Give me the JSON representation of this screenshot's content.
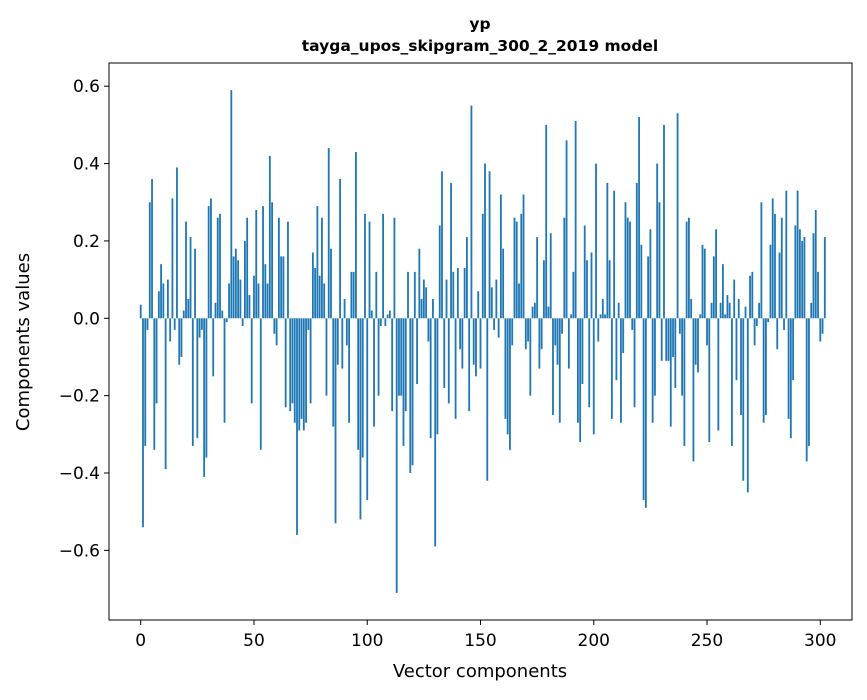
{
  "chart_data": {
    "type": "bar",
    "title": "yp",
    "subtitle": "tayga_upos_skipgram_300_2_2019 model",
    "xlabel": "Vector components",
    "ylabel": "Components values",
    "xlim": [
      -14,
      314
    ],
    "ylim": [
      -0.78,
      0.66
    ],
    "xticks": [
      0,
      50,
      100,
      150,
      200,
      250,
      300
    ],
    "yticks": [
      -0.6,
      -0.4,
      -0.2,
      0.0,
      0.2,
      0.4,
      0.6
    ],
    "ytick_labels": [
      "−0.6",
      "−0.4",
      "−0.2",
      "0.0",
      "0.2",
      "0.4",
      "0.6"
    ],
    "bar_color": "#1f77b4",
    "grid": false,
    "x": "0..299",
    "values": [
      0.035,
      -0.54,
      -0.33,
      -0.03,
      0.3,
      0.36,
      -0.34,
      -0.22,
      0.07,
      0.14,
      0.09,
      -0.39,
      0.1,
      -0.06,
      0.31,
      -0.03,
      0.39,
      -0.12,
      -0.1,
      0.02,
      0.25,
      0.05,
      0.21,
      -0.33,
      0.18,
      -0.31,
      -0.05,
      -0.03,
      -0.41,
      -0.36,
      0.29,
      0.31,
      -0.15,
      0.04,
      0.26,
      0.27,
      0.02,
      -0.27,
      -0.01,
      0.09,
      0.59,
      0.16,
      0.18,
      0.15,
      0.1,
      -0.02,
      0.2,
      0.26,
      0.06,
      -0.22,
      0.11,
      0.28,
      0.09,
      -0.34,
      0.29,
      0.14,
      0.09,
      0.42,
      0.3,
      -0.04,
      -0.07,
      0.26,
      0.16,
      0.16,
      -0.23,
      0.25,
      -0.24,
      -0.22,
      -0.27,
      -0.56,
      -0.29,
      -0.26,
      -0.29,
      -0.27,
      -0.03,
      -0.22,
      0.17,
      0.13,
      0.29,
      0.11,
      0.26,
      0.09,
      -0.2,
      0.44,
      0.18,
      -0.28,
      -0.53,
      -0.12,
      0.36,
      -0.13,
      0.05,
      -0.07,
      -0.27,
      0.12,
      0.12,
      0.43,
      -0.34,
      -0.52,
      -0.36,
      0.27,
      -0.47,
      0.25,
      0.02,
      -0.28,
      0.12,
      -0.2,
      -0.02,
      0.27,
      -0.02,
      0.01,
      0.02,
      -0.24,
      0.26,
      -0.71,
      -0.2,
      -0.2,
      -0.33,
      -0.24,
      0.12,
      -0.4,
      -0.38,
      0.12,
      -0.17,
      0.18,
      0.05,
      0.1,
      0.08,
      -0.06,
      -0.31,
      0.05,
      -0.59,
      -0.3,
      0.24,
      0.38,
      -0.18,
      0.1,
      -0.22,
      0.35,
      0.12,
      -0.26,
      0.13,
      -0.08,
      -0.13,
      0.13,
      0.21,
      -0.24,
      0.55,
      -0.12,
      -0.15,
      0.07,
      -0.13,
      0.27,
      0.4,
      -0.42,
      0.38,
      0.08,
      -0.03,
      0.1,
      -0.05,
      0.32,
      0.18,
      -0.26,
      -0.3,
      -0.34,
      -0.07,
      0.26,
      0.25,
      0.09,
      0.27,
      0.32,
      -0.08,
      -0.06,
      -0.2,
      0.03,
      0.04,
      0.21,
      -0.13,
      -0.08,
      0.15,
      0.5,
      0.03,
      0.22,
      -0.25,
      -0.07,
      -0.12,
      -0.27,
      -0.04,
      0.26,
      0.46,
      -0.13,
      0.01,
      0.12,
      0.51,
      -0.27,
      -0.32,
      -0.17,
      0.24,
      0.15,
      -0.23,
      0.17,
      -0.3,
      0.4,
      -0.06,
      0.01,
      0.05,
      0.01,
      0.35,
      0.15,
      -0.26,
      0.33,
      -0.16,
      0.04,
      -0.27,
      -0.09,
      0.3,
      0.26,
      0.25,
      -0.03,
      -0.23,
      0.35,
      0.52,
      0.19,
      -0.47,
      -0.49,
      0.16,
      0.23,
      -0.27,
      -0.2,
      0.4,
      0.3,
      -0.11,
      0.5,
      -0.11,
      -0.11,
      -0.28,
      -0.1,
      -0.18,
      0.53,
      -0.04,
      -0.2,
      -0.33,
      0.25,
      0.26,
      0.05,
      -0.37,
      -0.12,
      -0.14,
      0.01,
      0.19,
      0.18,
      -0.07,
      -0.32,
      0.04,
      0.16,
      0.23,
      -0.29,
      0.04,
      0.14,
      0.01,
      0.06,
      0.04,
      -0.33,
      0.1,
      -0.16,
      0.05,
      -0.25,
      -0.42,
      0.03,
      -0.45,
      0.11,
      0.12,
      -0.07,
      -0.02,
      0.04,
      0.3,
      -0.27,
      -0.25,
      -0.01,
      0.19,
      0.31,
      0.27,
      -0.08,
      0.17,
      0.26,
      -0.03,
      0.33,
      -0.26,
      -0.31,
      -0.16,
      0.24,
      0.33,
      0.23,
      0.2,
      0.21,
      -0.37,
      -0.33,
      0.04,
      0.22,
      0.28,
      0.12,
      -0.06,
      -0.04,
      0.21
    ]
  }
}
